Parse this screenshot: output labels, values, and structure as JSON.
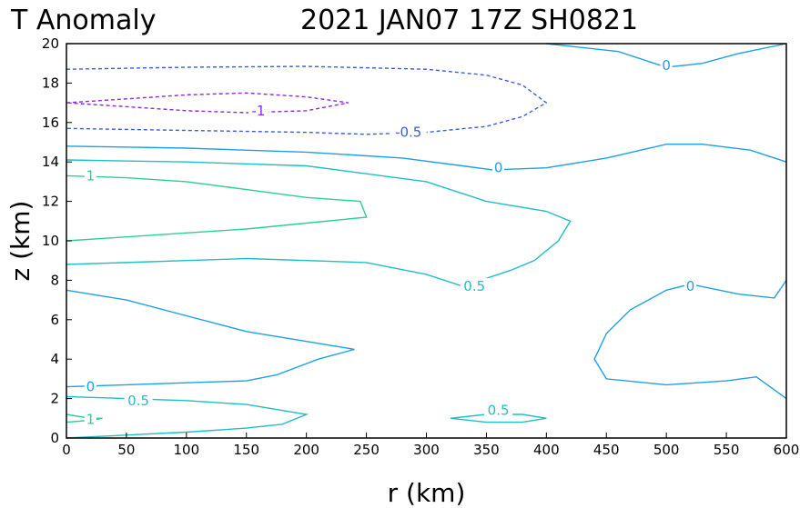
{
  "chart_data": {
    "type": "contour",
    "title_left": "T Anomaly",
    "title_right": "2021 JAN07 17Z   SH0821",
    "xlabel": "r (km)",
    "ylabel": "z (km)",
    "xlim": [
      0,
      600
    ],
    "ylim": [
      0,
      20
    ],
    "x_ticks": [
      0,
      50,
      100,
      150,
      200,
      250,
      300,
      350,
      400,
      450,
      500,
      550,
      600
    ],
    "y_ticks": [
      0,
      2,
      4,
      6,
      8,
      10,
      12,
      14,
      16,
      18,
      20
    ],
    "grid": false,
    "colors": {
      "level_-1": "#8a2be2",
      "level_-0.5": "#3a5de0",
      "level_0": "#1ea0e6",
      "level_0.5": "#1fbfc6",
      "level_1": "#2ccf9a"
    },
    "contours": [
      {
        "level": -1,
        "label": "-1",
        "dashed": true,
        "paths": [
          [
            [
              0,
              17.0
            ],
            [
              50,
              17.2
            ],
            [
              100,
              17.4
            ],
            [
              150,
              17.5
            ],
            [
              200,
              17.3
            ],
            [
              235,
              17.0
            ],
            [
              200,
              16.6
            ],
            [
              150,
              16.5
            ],
            [
              100,
              16.6
            ],
            [
              50,
              16.8
            ],
            [
              0,
              17.0
            ]
          ]
        ],
        "labels": [
          {
            "x": 160,
            "y": 16.6
          }
        ]
      },
      {
        "level": -0.5,
        "label": "-0.5",
        "dashed": true,
        "paths": [
          [
            [
              0,
              18.7
            ],
            [
              100,
              18.8
            ],
            [
              200,
              18.85
            ],
            [
              300,
              18.7
            ],
            [
              350,
              18.4
            ],
            [
              380,
              17.9
            ],
            [
              400,
              17.0
            ],
            [
              380,
              16.3
            ],
            [
              350,
              15.8
            ],
            [
              300,
              15.5
            ],
            [
              250,
              15.4
            ],
            [
              200,
              15.5
            ],
            [
              100,
              15.6
            ],
            [
              0,
              15.7
            ]
          ]
        ],
        "labels": [
          {
            "x": 285,
            "y": 15.5
          }
        ]
      },
      {
        "level": 0,
        "label": "0",
        "dashed": false,
        "paths": [
          [
            [
              0,
              14.8
            ],
            [
              100,
              14.7
            ],
            [
              200,
              14.5
            ],
            [
              280,
              14.2
            ],
            [
              330,
              13.8
            ],
            [
              355,
              13.6
            ],
            [
              400,
              13.7
            ],
            [
              450,
              14.2
            ],
            [
              500,
              14.9
            ],
            [
              530,
              14.9
            ],
            [
              570,
              14.6
            ],
            [
              600,
              14.0
            ]
          ],
          [
            [
              400,
              20.0
            ],
            [
              460,
              19.6
            ],
            [
              500,
              18.8
            ],
            [
              530,
              19.0
            ],
            [
              560,
              19.5
            ],
            [
              600,
              20.0
            ]
          ],
          [
            [
              0,
              7.5
            ],
            [
              50,
              7.0
            ],
            [
              100,
              6.2
            ],
            [
              150,
              5.4
            ],
            [
              200,
              4.9
            ],
            [
              240,
              4.5
            ],
            [
              210,
              4.0
            ],
            [
              175,
              3.2
            ],
            [
              150,
              2.9
            ],
            [
              100,
              2.8
            ],
            [
              50,
              2.7
            ],
            [
              0,
              2.6
            ]
          ],
          [
            [
              600,
              8.0
            ],
            [
              590,
              7.1
            ],
            [
              560,
              7.3
            ],
            [
              520,
              7.8
            ],
            [
              500,
              7.5
            ],
            [
              470,
              6.5
            ],
            [
              450,
              5.3
            ],
            [
              440,
              4.0
            ],
            [
              450,
              3.0
            ],
            [
              500,
              2.7
            ],
            [
              550,
              2.9
            ],
            [
              575,
              3.1
            ],
            [
              600,
              2.0
            ]
          ]
        ],
        "labels": [
          {
            "x": 20,
            "y": 2.6
          },
          {
            "x": 360,
            "y": 13.7
          },
          {
            "x": 500,
            "y": 18.9
          },
          {
            "x": 520,
            "y": 7.7
          }
        ]
      },
      {
        "level": 0.5,
        "label": "0.5",
        "dashed": false,
        "paths": [
          [
            [
              0,
              14.1
            ],
            [
              100,
              14.0
            ],
            [
              200,
              13.8
            ],
            [
              300,
              13.0
            ],
            [
              350,
              12.0
            ],
            [
              400,
              11.5
            ],
            [
              420,
              11.0
            ],
            [
              410,
              10.0
            ],
            [
              390,
              9.0
            ],
            [
              370,
              8.5
            ],
            [
              330,
              7.7
            ],
            [
              300,
              8.3
            ],
            [
              250,
              8.9
            ],
            [
              150,
              9.1
            ],
            [
              100,
              9.0
            ],
            [
              0,
              8.8
            ]
          ],
          [
            [
              0,
              2.1
            ],
            [
              100,
              1.9
            ],
            [
              150,
              1.7
            ],
            [
              200,
              1.2
            ],
            [
              180,
              0.7
            ],
            [
              150,
              0.5
            ],
            [
              100,
              0.3
            ],
            [
              0,
              0.0
            ]
          ],
          [
            [
              320,
              1.0
            ],
            [
              350,
              1.2
            ],
            [
              380,
              1.2
            ],
            [
              400,
              1.0
            ],
            [
              380,
              0.8
            ],
            [
              350,
              0.8
            ],
            [
              320,
              1.0
            ]
          ]
        ],
        "labels": [
          {
            "x": 340,
            "y": 7.7
          },
          {
            "x": 60,
            "y": 1.9
          },
          {
            "x": 360,
            "y": 1.4
          }
        ]
      },
      {
        "level": 1,
        "label": "1",
        "dashed": false,
        "paths": [
          [
            [
              0,
              13.3
            ],
            [
              50,
              13.2
            ],
            [
              100,
              13.0
            ],
            [
              150,
              12.6
            ],
            [
              200,
              12.2
            ],
            [
              245,
              12.0
            ],
            [
              250,
              11.2
            ],
            [
              200,
              10.9
            ],
            [
              150,
              10.6
            ],
            [
              100,
              10.4
            ],
            [
              50,
              10.2
            ],
            [
              0,
              10.0
            ]
          ],
          [
            [
              0,
              1.2
            ],
            [
              20,
              1.0
            ],
            [
              30,
              1.0
            ],
            [
              20,
              0.9
            ],
            [
              0,
              0.8
            ]
          ]
        ],
        "labels": [
          {
            "x": 20,
            "y": 13.3
          },
          {
            "x": 20,
            "y": 0.95
          }
        ]
      }
    ]
  }
}
